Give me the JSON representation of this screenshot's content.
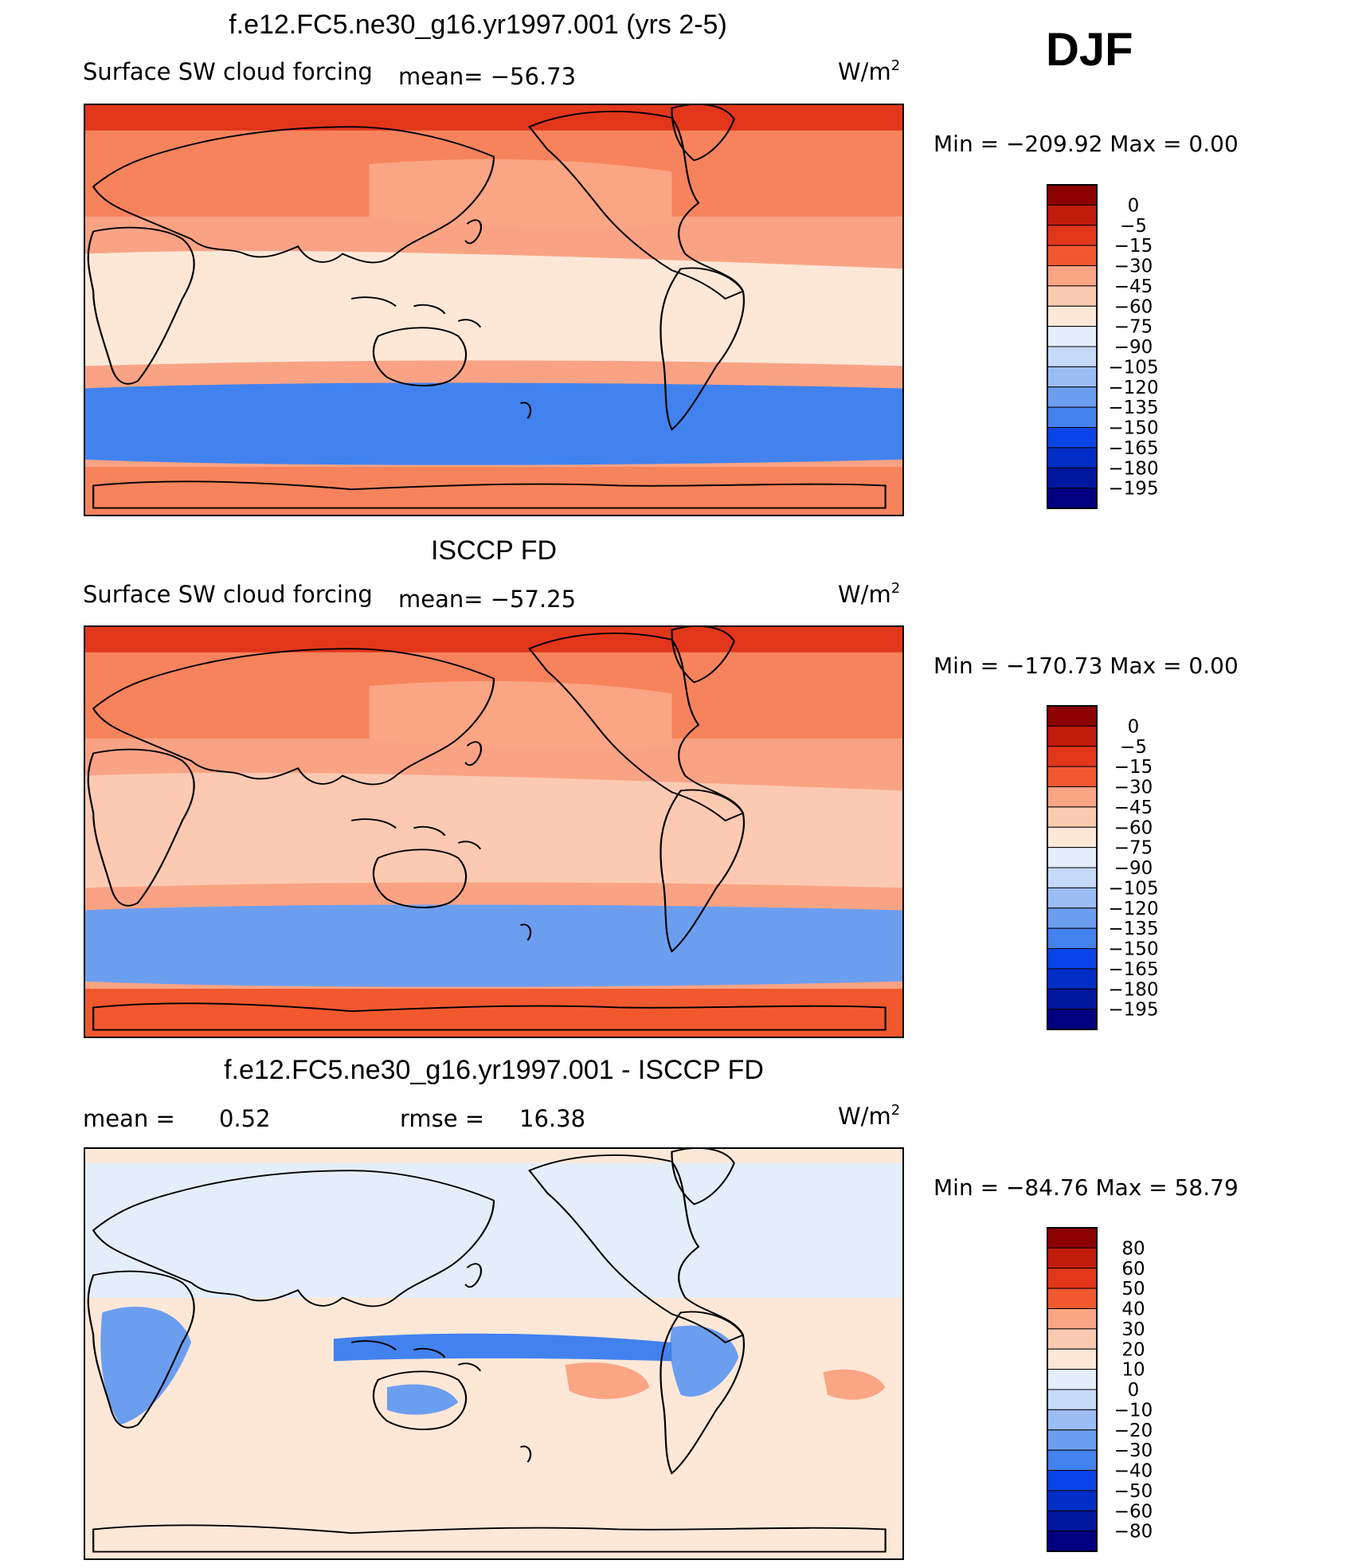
{
  "season": "DJF",
  "colors": {
    "ocean_bg": "#f9a384",
    "land_line": "#000000",
    "frame": "#000000"
  },
  "palettes": {
    "absolute": [
      "#000080",
      "#00169e",
      "#002ec6",
      "#0a44e6",
      "#2364f0",
      "#4282ee",
      "#6c9ef0",
      "#9cbcf4",
      "#c5d9f8",
      "#e3eefa",
      "#fde8d8",
      "#fccab2",
      "#faa584",
      "#f7835c",
      "#f1582e",
      "#e2361a",
      "#c11b09",
      "#8c0000"
    ],
    "difference": [
      "#000080",
      "#00169e",
      "#002ec6",
      "#0a44e6",
      "#2364f0",
      "#4282ee",
      "#6c9ef0",
      "#9cbcf4",
      "#c5d9f8",
      "#e3eefa",
      "#fde8d8",
      "#fccab2",
      "#faa584",
      "#f7835c",
      "#f1582e",
      "#e2361a",
      "#c11b09",
      "#8c0000"
    ]
  },
  "chart_data": [
    {
      "type": "heatmap",
      "title": "f.e12.FC5.ne30_g16.yr1997.001 (yrs 2-5)",
      "variable": "Surface SW cloud forcing",
      "mean_text": "mean= −56.73",
      "units": "W/m",
      "units_sup": "2",
      "min_max_text": "Min  =  −209.92  Max  =      0.00",
      "colorbar_labels": [
        "0",
        "−5",
        "−15",
        "−30",
        "−45",
        "−60",
        "−75",
        "−90",
        "−105",
        "−120",
        "−135",
        "−150",
        "−165",
        "−180",
        "−195"
      ],
      "regions": [
        {
          "name": "north-polar-band",
          "value": -5
        },
        {
          "name": "north-midlatitudes",
          "value": -30
        },
        {
          "name": "north-pacific-storm-track",
          "value": -45
        },
        {
          "name": "tropics",
          "value": -75
        },
        {
          "name": "southern-ocean-band",
          "value": -150
        },
        {
          "name": "antarctic-margin",
          "value": -30
        }
      ]
    },
    {
      "type": "heatmap",
      "title": "ISCCP FD",
      "variable": "Surface SW cloud forcing",
      "mean_text": "mean= −57.25",
      "units": "W/m",
      "units_sup": "2",
      "min_max_text": "Min  =  −170.73  Max  =      0.00",
      "colorbar_labels": [
        "0",
        "−5",
        "−15",
        "−30",
        "−45",
        "−60",
        "−75",
        "−90",
        "−105",
        "−120",
        "−135",
        "−150",
        "−165",
        "−180",
        "−195"
      ],
      "regions": [
        {
          "name": "north-polar-band",
          "value": -5
        },
        {
          "name": "north-midlatitudes",
          "value": -30
        },
        {
          "name": "north-pacific-storm-track",
          "value": -45
        },
        {
          "name": "tropics",
          "value": -60
        },
        {
          "name": "southern-ocean-band",
          "value": -135
        },
        {
          "name": "antarctic-margin",
          "value": -15
        }
      ]
    },
    {
      "type": "heatmap",
      "title": "f.e12.FC5.ne30_g16.yr1997.001 - ISCCP FD",
      "stat_mean_label": "mean  =",
      "stat_mean_value": "0.52",
      "stat_rmse_label": "rmse  =",
      "stat_rmse_value": "16.38",
      "units": "W/m",
      "units_sup": "2",
      "min_max_text": "Min  =  −84.76  Max  =    58.79",
      "colorbar_labels": [
        "80",
        "60",
        "50",
        "40",
        "30",
        "20",
        "10",
        "0",
        "−10",
        "−20",
        "−30",
        "−40",
        "−50",
        "−60",
        "−80"
      ],
      "regions": [
        {
          "name": "northern-hemisphere",
          "value": 5
        },
        {
          "name": "tropical-continents",
          "value": -30
        },
        {
          "name": "itcz-band",
          "value": -40
        },
        {
          "name": "subtropical-stratocumulus",
          "value": 30
        },
        {
          "name": "southern-ocean",
          "value": 10
        }
      ]
    }
  ]
}
